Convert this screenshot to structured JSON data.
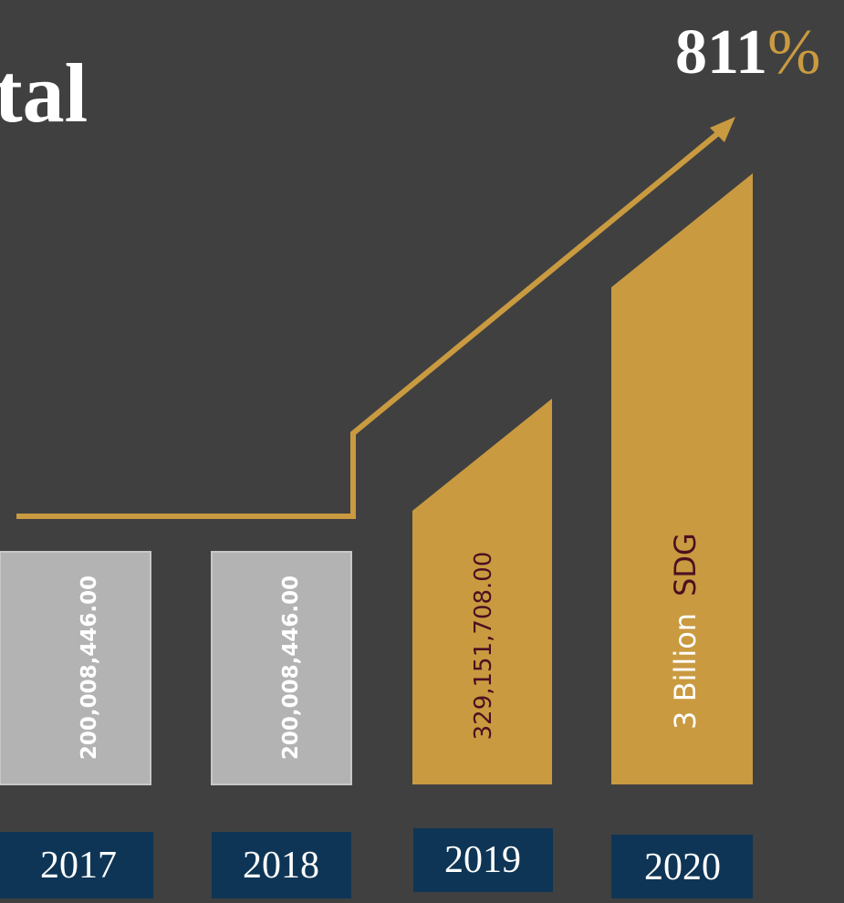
{
  "title": "tal",
  "growth": {
    "value": "811",
    "unit": "%"
  },
  "bars": [
    {
      "year": "2017",
      "label": "200,008,446.00"
    },
    {
      "year": "2018",
      "label": "200,008,446.00"
    },
    {
      "year": "2019",
      "label": "329,151,708.00"
    },
    {
      "year": "2020",
      "label": "3 Billion",
      "unit": "SDG"
    }
  ]
}
